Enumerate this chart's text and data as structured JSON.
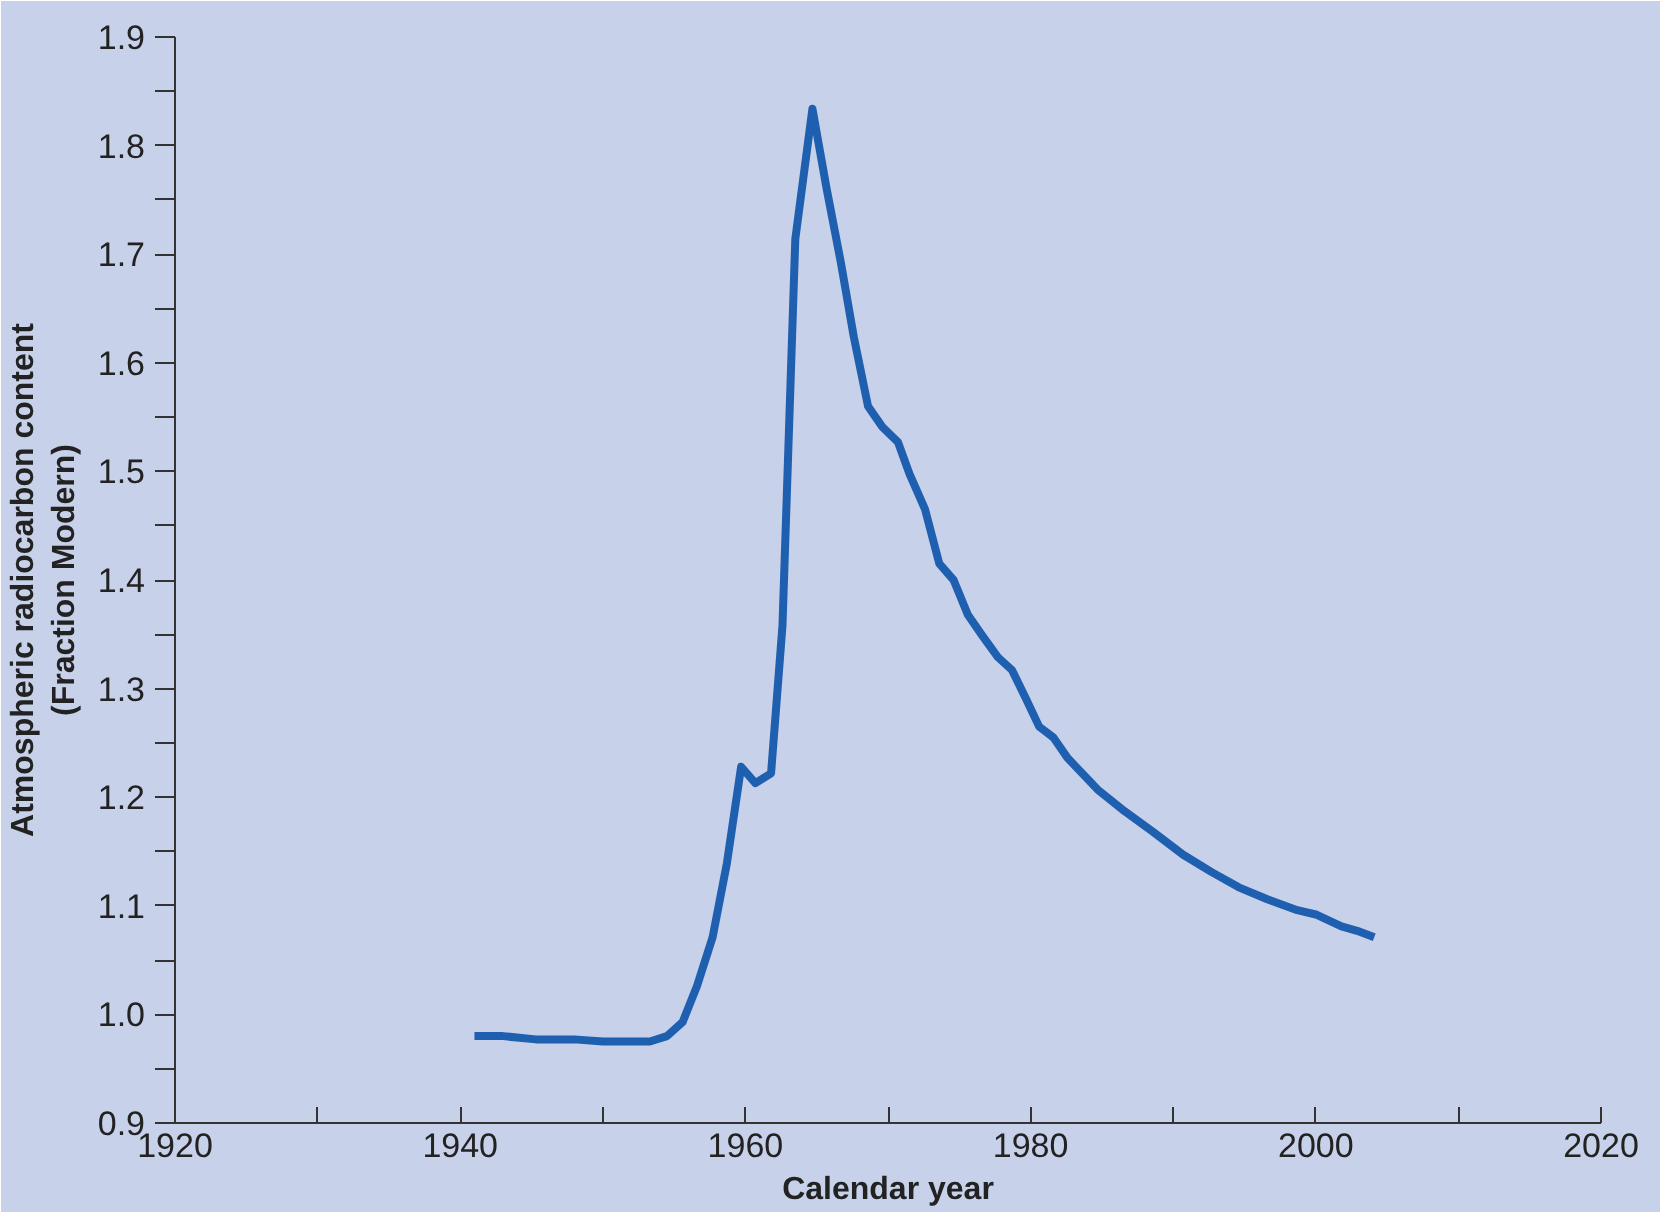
{
  "chart_data": {
    "type": "line",
    "xlabel": "Calendar year",
    "ylabel": "Atmospheric radiocarbon content\n(Fraction Modern)",
    "x": [
      1941,
      1943,
      1945.3,
      1948,
      1950,
      1953.3,
      1954.5,
      1955.6,
      1956.6,
      1957.7,
      1958.7,
      1959.7,
      1960.7,
      1961.8,
      1962.6,
      1963.5,
      1964.7,
      1965.7,
      1966.7,
      1967.6,
      1968.6,
      1969.6,
      1970.7,
      1971.5,
      1972.6,
      1973.6,
      1974.6,
      1975.6,
      1976.6,
      1977.7,
      1978.7,
      1979.7,
      1980.6,
      1981.6,
      1982.6,
      1984.7,
      1986.6,
      1988.6,
      1990.7,
      1992.7,
      1994.6,
      1996.6,
      1998.7,
      2000,
      2001.8,
      2002.9,
      2004.1
    ],
    "series": [
      {
        "color": "#1f5fb0",
        "values": [
          0.98,
          0.98,
          0.977,
          0.977,
          0.975,
          0.975,
          0.98,
          0.993,
          1.026,
          1.071,
          1.139,
          1.228,
          1.213,
          1.222,
          1.358,
          1.714,
          1.834,
          1.76,
          1.692,
          1.624,
          1.56,
          1.541,
          1.527,
          1.498,
          1.465,
          1.415,
          1.4,
          1.368,
          1.349,
          1.329,
          1.317,
          1.29,
          1.265,
          1.255,
          1.236,
          1.207,
          1.187,
          1.168,
          1.147,
          1.131,
          1.117,
          1.106,
          1.096,
          1.092,
          1.081,
          1.077,
          1.071
        ]
      }
    ],
    "xlim": [
      1920,
      2020
    ],
    "ylim": [
      0.9,
      1.9
    ],
    "xticks": [
      1920,
      {
        "value": 1930,
        "label": null
      },
      1940,
      {
        "value": 1950,
        "label": null
      },
      1960,
      {
        "value": 1970,
        "label": null
      },
      1980,
      {
        "value": 1990,
        "label": null
      },
      2000,
      {
        "value": 2010,
        "label": null
      },
      2020
    ],
    "yticks": [
      0.9,
      {
        "value": 0.95,
        "label": null
      },
      {
        "value": 1,
        "label": "1.0"
      },
      {
        "value": 1.05,
        "label": null
      },
      1.1,
      {
        "value": 1.15,
        "label": null
      },
      1.2,
      {
        "value": 1.25,
        "label": null
      },
      1.3,
      {
        "value": 1.35,
        "label": null
      },
      1.4,
      {
        "value": 1.45,
        "label": null
      },
      1.5,
      {
        "value": 1.55,
        "label": null
      },
      1.6,
      {
        "value": 1.65,
        "label": null
      },
      1.7,
      {
        "value": 1.75,
        "label": null
      },
      1.8,
      {
        "value": 1.85,
        "label": null
      },
      1.9
    ],
    "grid": false,
    "marker": "none",
    "line_style": "solid"
  }
}
